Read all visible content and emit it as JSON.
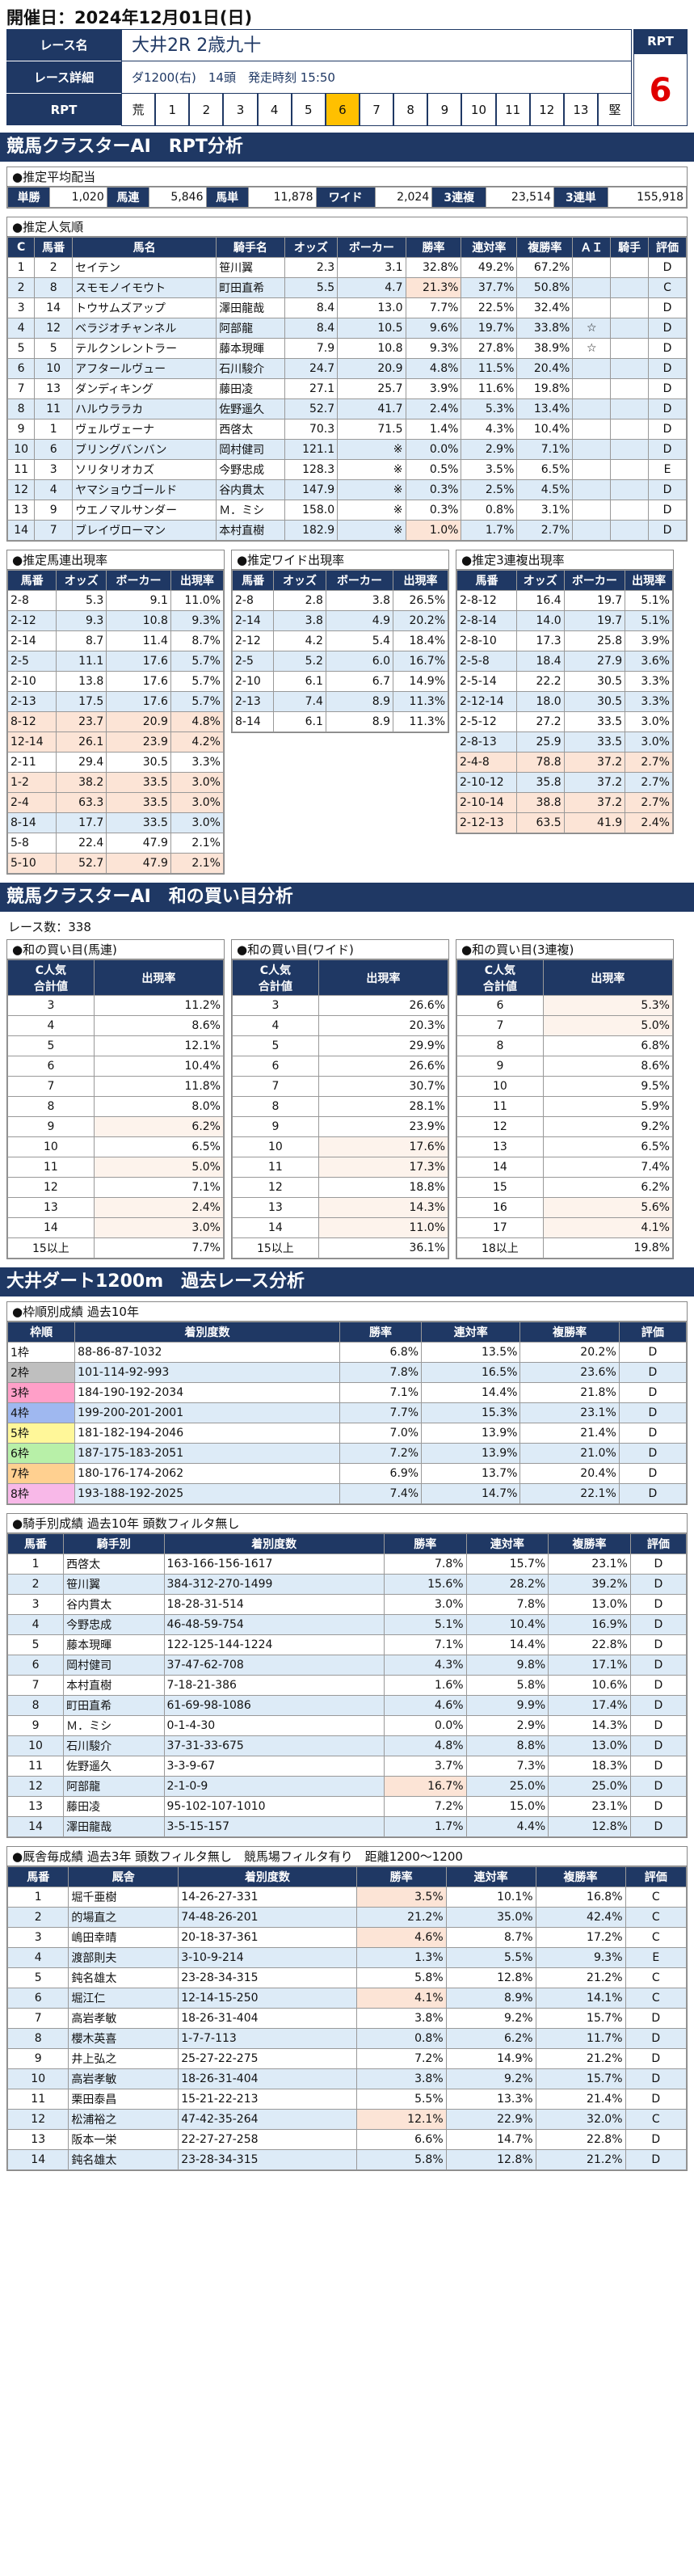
{
  "header": {
    "date_label": "開催日：2024年12月01日(日)"
  },
  "race": {
    "name_label": "レース名",
    "name": "大井2R 2歳九十",
    "detail_label": "レース詳細",
    "detail": "ダ1200(右)　14頭　発走時刻 15:50",
    "rpt_label": "RPT",
    "rpt_scale": [
      "荒",
      "1",
      "2",
      "3",
      "4",
      "5",
      "6",
      "7",
      "8",
      "9",
      "10",
      "11",
      "12",
      "13",
      "堅"
    ],
    "rpt_current_index": 6,
    "rpt_title": "RPT",
    "rpt_value": "6"
  },
  "section1": {
    "title": "競馬クラスターAI　RPT分析"
  },
  "payout": {
    "caption": "●推定平均配当",
    "items": [
      {
        "k": "単勝",
        "v": "1,020"
      },
      {
        "k": "馬連",
        "v": "5,846"
      },
      {
        "k": "馬単",
        "v": "11,878"
      },
      {
        "k": "ワイド",
        "v": "2,024"
      },
      {
        "k": "3連複",
        "v": "23,514"
      },
      {
        "k": "3連単",
        "v": "155,918"
      }
    ]
  },
  "popularity": {
    "caption": "●推定人気順",
    "headers": [
      "C",
      "馬番",
      "馬名",
      "騎手名",
      "オッズ",
      "ボーカー",
      "勝率",
      "連対率",
      "複勝率",
      "ＡＩ",
      "騎手",
      "評価"
    ],
    "rows": [
      [
        "1",
        "2",
        "セイテン",
        "笹川翼",
        "2.3",
        "3.1",
        "32.8%",
        "49.2%",
        "67.2%",
        "",
        "",
        "D"
      ],
      [
        "2",
        "8",
        "スモモノイモウト",
        "町田直希",
        "5.5",
        "4.7",
        "21.3%",
        "37.7%",
        "50.8%",
        "",
        "",
        "C"
      ],
      [
        "3",
        "14",
        "トウサムズアップ",
        "澤田龍哉",
        "8.4",
        "13.0",
        "7.7%",
        "22.5%",
        "32.4%",
        "",
        "",
        "D"
      ],
      [
        "4",
        "12",
        "ベラジオチャンネル",
        "阿部龍",
        "8.4",
        "10.5",
        "9.6%",
        "19.7%",
        "33.8%",
        "☆",
        "",
        "D"
      ],
      [
        "5",
        "5",
        "テルクンレントラー",
        "藤本現暉",
        "7.9",
        "10.8",
        "9.3%",
        "27.8%",
        "38.9%",
        "☆",
        "",
        "D"
      ],
      [
        "6",
        "10",
        "アフタールヴュー",
        "石川駿介",
        "24.7",
        "20.9",
        "4.8%",
        "11.5%",
        "20.4%",
        "",
        "",
        "D"
      ],
      [
        "7",
        "13",
        "ダンディキング",
        "藤田凌",
        "27.1",
        "25.7",
        "3.9%",
        "11.6%",
        "19.8%",
        "",
        "",
        "D"
      ],
      [
        "8",
        "11",
        "ハルウララカ",
        "佐野遥久",
        "52.7",
        "41.7",
        "2.4%",
        "5.3%",
        "13.4%",
        "",
        "",
        "D"
      ],
      [
        "9",
        "1",
        "ヴェルヴェーナ",
        "西啓太",
        "70.3",
        "71.5",
        "1.4%",
        "4.3%",
        "10.4%",
        "",
        "",
        "D"
      ],
      [
        "10",
        "6",
        "ブリングバンバン",
        "岡村健司",
        "121.1",
        "※",
        "0.0%",
        "2.9%",
        "7.1%",
        "",
        "",
        "D"
      ],
      [
        "11",
        "3",
        "ソリタリオカズ",
        "今野忠成",
        "128.3",
        "※",
        "0.5%",
        "3.5%",
        "6.5%",
        "",
        "",
        "E"
      ],
      [
        "12",
        "4",
        "ヤマショウゴールド",
        "谷内貫太",
        "147.9",
        "※",
        "0.3%",
        "2.5%",
        "4.5%",
        "",
        "",
        "D"
      ],
      [
        "13",
        "9",
        "ウエノマルサンダー",
        "Ｍ．ミシ",
        "158.0",
        "※",
        "0.3%",
        "0.8%",
        "3.1%",
        "",
        "",
        "D"
      ],
      [
        "14",
        "7",
        "ブレイヴローマン",
        "本村直樹",
        "182.9",
        "※",
        "1.0%",
        "1.7%",
        "2.7%",
        "",
        "",
        "D"
      ]
    ]
  },
  "umaren": {
    "caption": "●推定馬連出現率",
    "headers": [
      "馬番",
      "オッズ",
      "ボーカー",
      "出現率"
    ],
    "rows": [
      [
        "2-8",
        "5.3",
        "9.1",
        "11.0%"
      ],
      [
        "2-12",
        "9.3",
        "10.8",
        "9.3%"
      ],
      [
        "2-14",
        "8.7",
        "11.4",
        "8.7%"
      ],
      [
        "2-5",
        "11.1",
        "17.6",
        "5.7%"
      ],
      [
        "2-10",
        "13.8",
        "17.6",
        "5.7%"
      ],
      [
        "2-13",
        "17.5",
        "17.6",
        "5.7%"
      ],
      [
        "8-12",
        "23.7",
        "20.9",
        "4.8%"
      ],
      [
        "12-14",
        "26.1",
        "23.9",
        "4.2%"
      ],
      [
        "2-11",
        "29.4",
        "30.5",
        "3.3%"
      ],
      [
        "1-2",
        "38.2",
        "33.5",
        "3.0%"
      ],
      [
        "2-4",
        "63.3",
        "33.5",
        "3.0%"
      ],
      [
        "8-14",
        "17.7",
        "33.5",
        "3.0%"
      ],
      [
        "5-8",
        "22.4",
        "47.9",
        "2.1%"
      ],
      [
        "5-10",
        "52.7",
        "47.9",
        "2.1%"
      ]
    ]
  },
  "wide": {
    "caption": "●推定ワイド出現率",
    "headers": [
      "馬番",
      "オッズ",
      "ボーカー",
      "出現率"
    ],
    "rows": [
      [
        "2-8",
        "2.8",
        "3.8",
        "26.5%"
      ],
      [
        "2-14",
        "3.8",
        "4.9",
        "20.2%"
      ],
      [
        "2-12",
        "4.2",
        "5.4",
        "18.4%"
      ],
      [
        "2-5",
        "5.2",
        "6.0",
        "16.7%"
      ],
      [
        "2-10",
        "6.1",
        "6.7",
        "14.9%"
      ],
      [
        "2-13",
        "7.4",
        "8.9",
        "11.3%"
      ],
      [
        "8-14",
        "6.1",
        "8.9",
        "11.3%"
      ]
    ]
  },
  "sanrenpuku": {
    "caption": "●推定3連複出現率",
    "headers": [
      "馬番",
      "オッズ",
      "ボーカー",
      "出現率"
    ],
    "rows": [
      [
        "2-8-12",
        "16.4",
        "19.7",
        "5.1%"
      ],
      [
        "2-8-14",
        "14.0",
        "19.7",
        "5.1%"
      ],
      [
        "2-8-10",
        "17.3",
        "25.8",
        "3.9%"
      ],
      [
        "2-5-8",
        "18.4",
        "27.9",
        "3.6%"
      ],
      [
        "2-5-14",
        "22.2",
        "30.5",
        "3.3%"
      ],
      [
        "2-12-14",
        "18.0",
        "30.5",
        "3.3%"
      ],
      [
        "2-5-12",
        "27.2",
        "33.5",
        "3.0%"
      ],
      [
        "2-8-13",
        "25.9",
        "33.5",
        "3.0%"
      ],
      [
        "2-4-8",
        "78.8",
        "37.2",
        "2.7%"
      ],
      [
        "2-10-12",
        "35.8",
        "37.2",
        "2.7%"
      ],
      [
        "2-10-14",
        "38.8",
        "37.2",
        "2.7%"
      ],
      [
        "2-12-13",
        "63.5",
        "41.9",
        "2.4%"
      ]
    ]
  },
  "section2": {
    "title": "競馬クラスターAI　和の買い目分析",
    "race_count": "レース数：338"
  },
  "wa_umaren": {
    "caption": "●和の買い目(馬連)",
    "headers": [
      "C人気\n合計値",
      "出現率"
    ],
    "rows": [
      [
        "3",
        "11.2%"
      ],
      [
        "4",
        "8.6%"
      ],
      [
        "5",
        "12.1%"
      ],
      [
        "6",
        "10.4%"
      ],
      [
        "7",
        "11.8%"
      ],
      [
        "8",
        "8.0%"
      ],
      [
        "9",
        "6.2%"
      ],
      [
        "10",
        "6.5%"
      ],
      [
        "11",
        "5.0%"
      ],
      [
        "12",
        "7.1%"
      ],
      [
        "13",
        "2.4%"
      ],
      [
        "14",
        "3.0%"
      ],
      [
        "15以上",
        "7.7%"
      ]
    ]
  },
  "wa_wide": {
    "caption": "●和の買い目(ワイド)",
    "headers": [
      "C人気\n合計値",
      "出現率"
    ],
    "rows": [
      [
        "3",
        "26.6%"
      ],
      [
        "4",
        "20.3%"
      ],
      [
        "5",
        "29.9%"
      ],
      [
        "6",
        "26.6%"
      ],
      [
        "7",
        "30.7%"
      ],
      [
        "8",
        "28.1%"
      ],
      [
        "9",
        "23.9%"
      ],
      [
        "10",
        "17.6%"
      ],
      [
        "11",
        "17.3%"
      ],
      [
        "12",
        "18.8%"
      ],
      [
        "13",
        "14.3%"
      ],
      [
        "14",
        "11.0%"
      ],
      [
        "15以上",
        "36.1%"
      ]
    ]
  },
  "wa_sanren": {
    "caption": "●和の買い目(3連複)",
    "headers": [
      "C人気\n合計値",
      "出現率"
    ],
    "rows": [
      [
        "6",
        "5.3%"
      ],
      [
        "7",
        "5.0%"
      ],
      [
        "8",
        "6.8%"
      ],
      [
        "9",
        "8.6%"
      ],
      [
        "10",
        "9.5%"
      ],
      [
        "11",
        "5.9%"
      ],
      [
        "12",
        "9.2%"
      ],
      [
        "13",
        "6.5%"
      ],
      [
        "14",
        "7.4%"
      ],
      [
        "15",
        "6.2%"
      ],
      [
        "16",
        "5.6%"
      ],
      [
        "17",
        "4.1%"
      ],
      [
        "18以上",
        "19.8%"
      ]
    ]
  },
  "section3": {
    "title": "大井ダート1200m　過去レース分析"
  },
  "waku": {
    "caption": "●枠順別成績 過去10年",
    "headers": [
      "枠順",
      "着別度数",
      "勝率",
      "連対率",
      "複勝率",
      "評価"
    ],
    "rows": [
      [
        "1枠",
        "88-86-87-1032",
        "6.8%",
        "13.5%",
        "20.2%",
        "D"
      ],
      [
        "2枠",
        "101-114-92-993",
        "7.8%",
        "16.5%",
        "23.6%",
        "D"
      ],
      [
        "3枠",
        "184-190-192-2034",
        "7.1%",
        "14.4%",
        "21.8%",
        "D"
      ],
      [
        "4枠",
        "199-200-201-2001",
        "7.7%",
        "15.3%",
        "23.1%",
        "D"
      ],
      [
        "5枠",
        "181-182-194-2046",
        "7.0%",
        "13.9%",
        "21.4%",
        "D"
      ],
      [
        "6枠",
        "187-175-183-2051",
        "7.2%",
        "13.9%",
        "21.0%",
        "D"
      ],
      [
        "7枠",
        "180-176-174-2062",
        "6.9%",
        "13.7%",
        "20.4%",
        "D"
      ],
      [
        "8枠",
        "193-188-192-2025",
        "7.4%",
        "14.7%",
        "22.1%",
        "D"
      ]
    ]
  },
  "jockey": {
    "caption": "●騎手別成績 過去10年 頭数フィルタ無し",
    "headers": [
      "馬番",
      "騎手別",
      "着別度数",
      "勝率",
      "連対率",
      "複勝率",
      "評価"
    ],
    "rows": [
      [
        "1",
        "西啓太",
        "163-166-156-1617",
        "7.8%",
        "15.7%",
        "23.1%",
        "D"
      ],
      [
        "2",
        "笹川翼",
        "384-312-270-1499",
        "15.6%",
        "28.2%",
        "39.2%",
        "D"
      ],
      [
        "3",
        "谷内貫太",
        "18-28-31-514",
        "3.0%",
        "7.8%",
        "13.0%",
        "D"
      ],
      [
        "4",
        "今野忠成",
        "46-48-59-754",
        "5.1%",
        "10.4%",
        "16.9%",
        "D"
      ],
      [
        "5",
        "藤本現暉",
        "122-125-144-1224",
        "7.1%",
        "14.4%",
        "22.8%",
        "D"
      ],
      [
        "6",
        "岡村健司",
        "37-47-62-708",
        "4.3%",
        "9.8%",
        "17.1%",
        "D"
      ],
      [
        "7",
        "本村直樹",
        "7-18-21-386",
        "1.6%",
        "5.8%",
        "10.6%",
        "D"
      ],
      [
        "8",
        "町田直希",
        "61-69-98-1086",
        "4.6%",
        "9.9%",
        "17.4%",
        "D"
      ],
      [
        "9",
        "Ｍ．ミシ",
        "0-1-4-30",
        "0.0%",
        "2.9%",
        "14.3%",
        "D"
      ],
      [
        "10",
        "石川駿介",
        "37-31-33-675",
        "4.8%",
        "8.8%",
        "13.0%",
        "D"
      ],
      [
        "11",
        "佐野遥久",
        "3-3-9-67",
        "3.7%",
        "7.3%",
        "18.3%",
        "D"
      ],
      [
        "12",
        "阿部龍",
        "2-1-0-9",
        "16.7%",
        "25.0%",
        "25.0%",
        "D"
      ],
      [
        "13",
        "藤田凌",
        "95-102-107-1010",
        "7.2%",
        "15.0%",
        "23.1%",
        "D"
      ],
      [
        "14",
        "澤田龍哉",
        "3-5-15-157",
        "1.7%",
        "4.4%",
        "12.8%",
        "D"
      ]
    ]
  },
  "trainer": {
    "caption": "●厩舎毎成績 過去3年 頭数フィルタ無し　競馬場フィルタ有り　距離1200～1200",
    "headers": [
      "馬番",
      "厩舎",
      "着別度数",
      "勝率",
      "連対率",
      "複勝率",
      "評価"
    ],
    "rows": [
      [
        "1",
        "堀千亜樹",
        "14-26-27-331",
        "3.5%",
        "10.1%",
        "16.8%",
        "C"
      ],
      [
        "2",
        "的場直之",
        "74-48-26-201",
        "21.2%",
        "35.0%",
        "42.4%",
        "C"
      ],
      [
        "3",
        "嶋田幸晴",
        "20-18-37-361",
        "4.6%",
        "8.7%",
        "17.2%",
        "C"
      ],
      [
        "4",
        "渡部則夫",
        "3-10-9-214",
        "1.3%",
        "5.5%",
        "9.3%",
        "E"
      ],
      [
        "5",
        "鈍名雄太",
        "23-28-34-315",
        "5.8%",
        "12.8%",
        "21.2%",
        "C"
      ],
      [
        "6",
        "堀江仁",
        "12-14-15-250",
        "4.1%",
        "8.9%",
        "14.1%",
        "C"
      ],
      [
        "7",
        "高岩孝敏",
        "18-26-31-404",
        "3.8%",
        "9.2%",
        "15.7%",
        "D"
      ],
      [
        "8",
        "櫻木英喜",
        "1-7-7-113",
        "0.8%",
        "6.2%",
        "11.7%",
        "D"
      ],
      [
        "9",
        "井上弘之",
        "25-27-22-275",
        "7.2%",
        "14.9%",
        "21.2%",
        "D"
      ],
      [
        "10",
        "高岩孝敏",
        "18-26-31-404",
        "3.8%",
        "9.2%",
        "15.7%",
        "D"
      ],
      [
        "11",
        "栗田泰昌",
        "15-21-22-213",
        "5.5%",
        "13.3%",
        "21.4%",
        "D"
      ],
      [
        "12",
        "松浦裕之",
        "47-42-35-264",
        "12.1%",
        "22.9%",
        "32.0%",
        "C"
      ],
      [
        "13",
        "阪本一栄",
        "22-27-27-258",
        "6.6%",
        "14.7%",
        "22.8%",
        "D"
      ],
      [
        "14",
        "鈍名雄太",
        "23-28-34-315",
        "5.8%",
        "12.8%",
        "21.2%",
        "D"
      ]
    ]
  }
}
